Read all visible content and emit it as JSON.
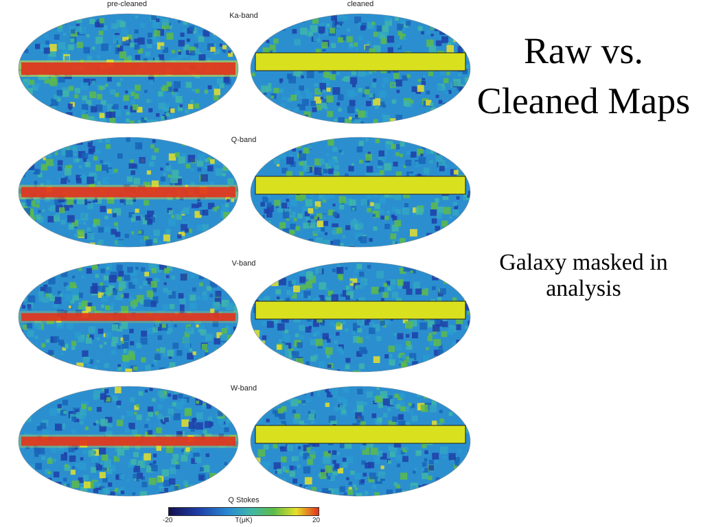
{
  "headers": {
    "left": "pre-cleaned",
    "right": "cleaned"
  },
  "bands": [
    "Ka-band",
    "Q-band",
    "V-band",
    "W-band"
  ],
  "slide": {
    "title": "Raw vs. Cleaned Maps",
    "note": "Galaxy masked in analysis"
  },
  "colorbar": {
    "title": "Q Stokes",
    "min": "-20",
    "max": "20",
    "unit": "T(μK)"
  },
  "colors": {
    "map_low": "#1f3fa8",
    "map_mid": "#2a9bd0",
    "map_green": "#5dbb49",
    "map_high": "#e6e02a",
    "galactic_plane": "#e2321c",
    "mask": "#d9e11f"
  },
  "galactic_plane_strength": [
    1.0,
    0.75,
    0.45,
    0.6
  ]
}
